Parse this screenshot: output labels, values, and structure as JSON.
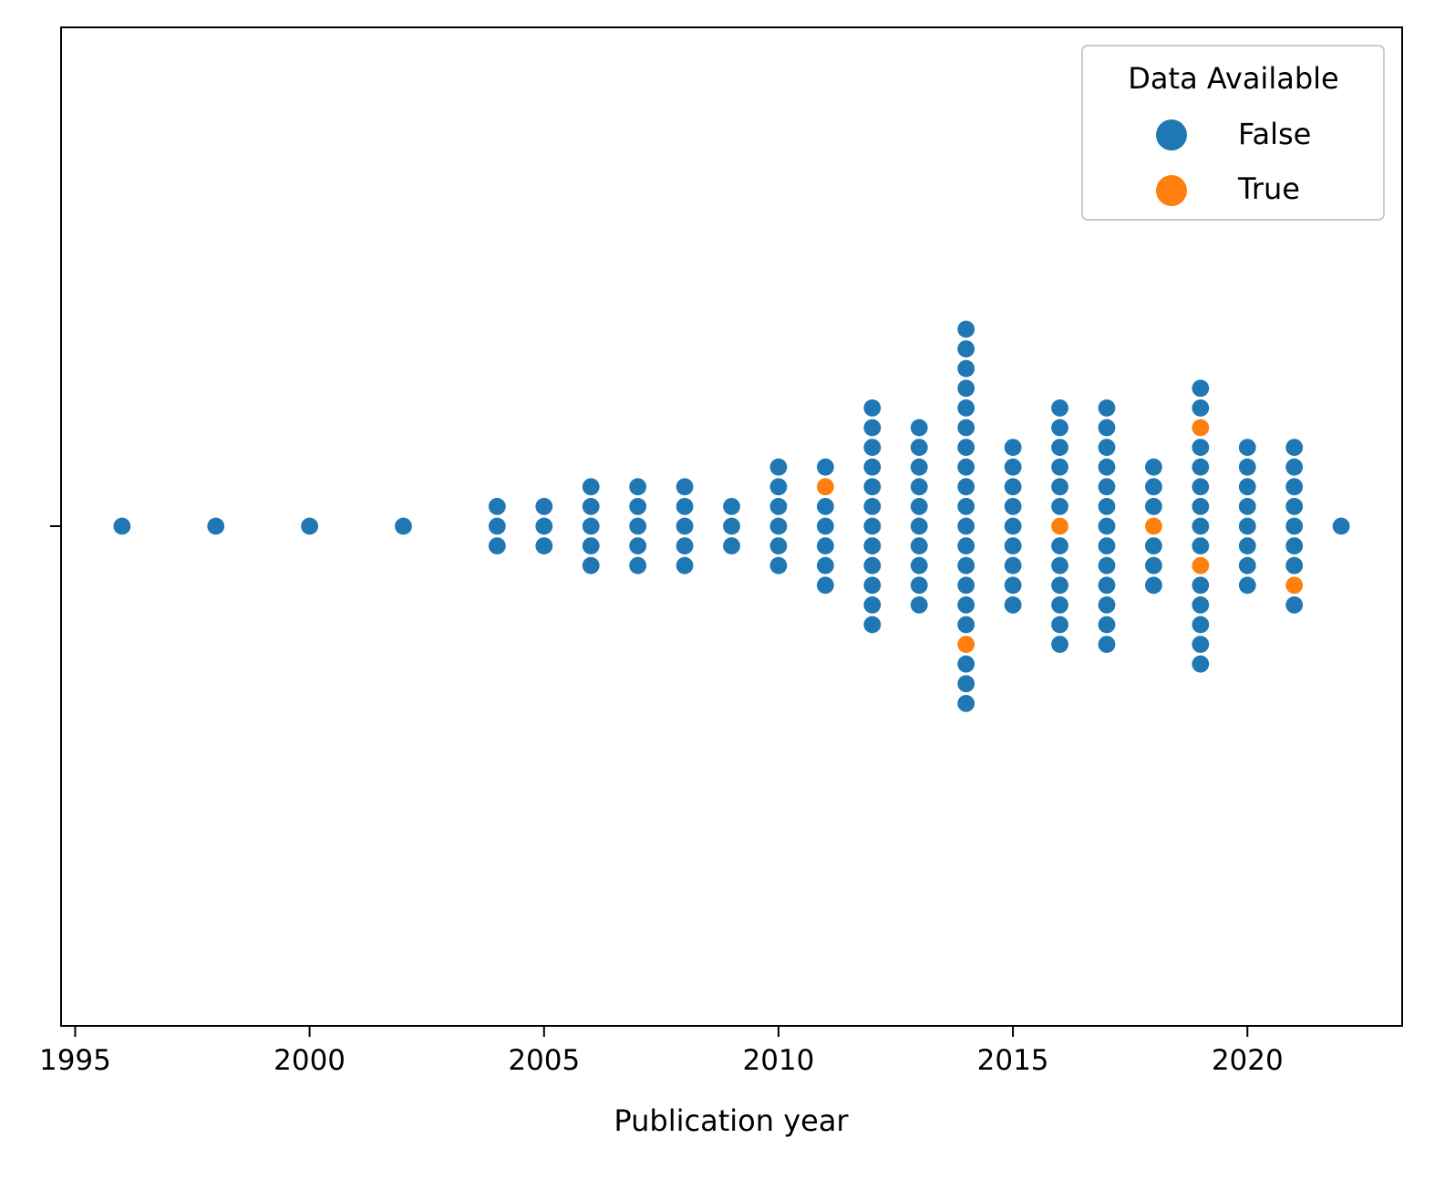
{
  "chart_data": {
    "type": "scatter",
    "subtype": "swarm",
    "title": "",
    "xlabel": "Publication year",
    "ylabel": "",
    "xlim": [
      1994.7,
      2023.3
    ],
    "xticks": [
      1995,
      2000,
      2005,
      2010,
      2015,
      2020
    ],
    "grid": false,
    "legend": {
      "title": "Data Available",
      "placement": "top-right",
      "entries": [
        {
          "label": "False",
          "color": "#1f77b4"
        },
        {
          "label": "True",
          "color": "#ff7f0e"
        }
      ]
    },
    "colors": {
      "False": "#1f77b4",
      "True": "#ff7f0e"
    },
    "series": [
      {
        "name": "False",
        "years": [
          1996,
          1998,
          2000,
          2002,
          2004,
          2004,
          2004,
          2005,
          2005,
          2005,
          2006,
          2006,
          2006,
          2006,
          2006,
          2007,
          2007,
          2007,
          2007,
          2007,
          2008,
          2008,
          2008,
          2008,
          2008,
          2009,
          2009,
          2009,
          2010,
          2010,
          2010,
          2010,
          2010,
          2010,
          2011,
          2011,
          2011,
          2011,
          2011,
          2011,
          2012,
          2012,
          2012,
          2012,
          2012,
          2012,
          2012,
          2012,
          2012,
          2012,
          2012,
          2012,
          2013,
          2013,
          2013,
          2013,
          2013,
          2013,
          2013,
          2013,
          2013,
          2013,
          2014,
          2014,
          2014,
          2014,
          2014,
          2014,
          2014,
          2014,
          2014,
          2014,
          2014,
          2014,
          2014,
          2014,
          2014,
          2014,
          2014,
          2014,
          2014,
          2015,
          2015,
          2015,
          2015,
          2015,
          2015,
          2015,
          2015,
          2015,
          2016,
          2016,
          2016,
          2016,
          2016,
          2016,
          2016,
          2016,
          2016,
          2016,
          2016,
          2016,
          2017,
          2017,
          2017,
          2017,
          2017,
          2017,
          2017,
          2017,
          2017,
          2017,
          2017,
          2017,
          2017,
          2018,
          2018,
          2018,
          2018,
          2018,
          2018,
          2019,
          2019,
          2019,
          2019,
          2019,
          2019,
          2019,
          2019,
          2019,
          2019,
          2019,
          2019,
          2019,
          2020,
          2020,
          2020,
          2020,
          2020,
          2020,
          2020,
          2020,
          2021,
          2021,
          2021,
          2021,
          2021,
          2021,
          2021,
          2021,
          2022
        ]
      },
      {
        "name": "True",
        "years": [
          2011,
          2014,
          2016,
          2018,
          2019,
          2019,
          2021
        ]
      }
    ]
  }
}
